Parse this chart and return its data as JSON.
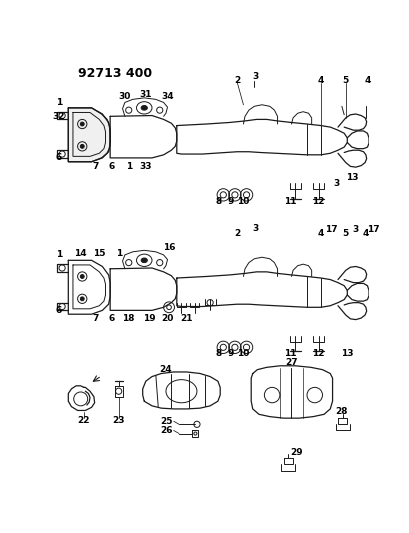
{
  "title": "92713 400",
  "bg_color": "#ffffff",
  "line_color": "#1a1a1a",
  "figsize": [
    4.1,
    5.33
  ],
  "dpi": 100
}
